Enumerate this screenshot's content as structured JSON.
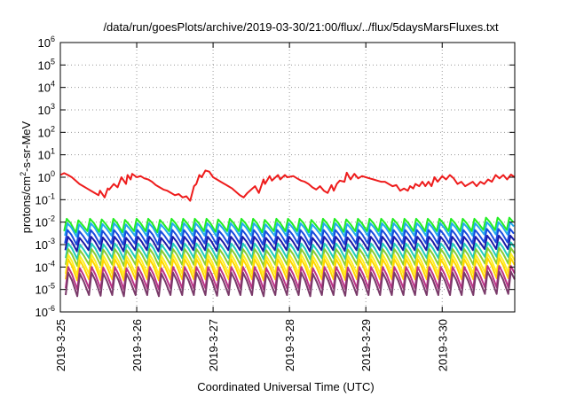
{
  "chart_data": {
    "type": "line",
    "title": "/data/run/goesPlots/archive/2019-03-30/21:00/flux/../flux/5daysMarsFluxes.txt",
    "xlabel": "Coordinated Universal Time (UTC)",
    "ylabel": {
      "pre": "protons/cm",
      "sup": "2",
      "post": "-s-sr-MeV"
    },
    "yscale": "log",
    "ylim": [
      -6,
      6
    ],
    "yticks": [
      -6,
      -5,
      -4,
      -3,
      -2,
      -1,
      0,
      1,
      2,
      3,
      4,
      5,
      6
    ],
    "ytick_base": "10",
    "xlim": [
      0,
      5.95
    ],
    "xticks": [
      {
        "day": 0,
        "label": "2019-3-25"
      },
      {
        "day": 1,
        "label": "2019-3-26"
      },
      {
        "day": 2,
        "label": "2019-3-27"
      },
      {
        "day": 3,
        "label": "2019-3-28"
      },
      {
        "day": 4,
        "label": "2019-3-29"
      },
      {
        "day": 5,
        "label": "2019-3-30"
      }
    ],
    "grid": true,
    "series": [
      {
        "color": "#ee1c1c",
        "width": 2,
        "x": [
          0.0,
          0.05,
          0.1,
          0.15,
          0.2,
          0.25,
          0.3,
          0.35,
          0.4,
          0.45,
          0.5,
          0.52,
          0.58,
          0.62,
          0.64,
          0.7,
          0.75,
          0.8,
          0.86,
          0.88,
          0.92,
          0.94,
          1.0,
          1.05,
          1.1,
          1.15,
          1.2,
          1.25,
          1.3,
          1.35,
          1.4,
          1.45,
          1.5,
          1.55,
          1.6,
          1.65,
          1.7,
          1.75,
          1.78,
          1.82,
          1.85,
          1.9,
          1.95,
          2.0,
          2.05,
          2.1,
          2.15,
          2.2,
          2.25,
          2.3,
          2.35,
          2.4,
          2.45,
          2.5,
          2.55,
          2.6,
          2.66,
          2.68,
          2.74,
          2.77,
          2.85,
          2.88,
          2.94,
          2.97,
          3.05,
          3.1,
          3.15,
          3.2,
          3.25,
          3.3,
          3.35,
          3.4,
          3.45,
          3.5,
          3.55,
          3.58,
          3.62,
          3.66,
          3.72,
          3.75,
          3.8,
          3.85,
          3.9,
          3.95,
          4.0,
          4.05,
          4.1,
          4.15,
          4.2,
          4.25,
          4.3,
          4.35,
          4.4,
          4.45,
          4.5,
          4.55,
          4.58,
          4.62,
          4.65,
          4.7,
          4.74,
          4.78,
          4.82,
          4.86,
          4.9,
          4.94,
          5.0,
          5.05,
          5.1,
          5.15,
          5.2,
          5.25,
          5.3,
          5.35,
          5.4,
          5.45,
          5.5,
          5.55,
          5.6,
          5.65,
          5.7,
          5.75,
          5.8,
          5.85,
          5.9,
          5.95
        ],
        "y": [
          0.1,
          0.18,
          0.1,
          0.0,
          -0.15,
          -0.3,
          -0.4,
          -0.5,
          -0.6,
          -0.7,
          -0.8,
          -0.6,
          -0.9,
          -0.5,
          -0.55,
          -0.3,
          -0.45,
          0.0,
          -0.3,
          0.1,
          -0.1,
          0.15,
          0.0,
          0.05,
          -0.05,
          -0.1,
          -0.2,
          -0.35,
          -0.45,
          -0.55,
          -0.6,
          -0.7,
          -0.8,
          -0.75,
          -0.9,
          -0.85,
          -1.05,
          -0.4,
          -0.3,
          0.1,
          0.0,
          0.3,
          0.25,
          0.0,
          -0.1,
          -0.2,
          -0.3,
          -0.4,
          -0.5,
          -0.65,
          -0.8,
          -0.9,
          -0.7,
          -0.55,
          -0.4,
          -0.7,
          -0.1,
          -0.3,
          0.05,
          -0.15,
          0.1,
          -0.1,
          0.1,
          0.0,
          0.05,
          -0.05,
          -0.15,
          -0.2,
          -0.3,
          -0.45,
          -0.55,
          -0.4,
          -0.6,
          -0.7,
          -0.35,
          -0.6,
          -0.3,
          -0.15,
          -0.2,
          0.2,
          -0.1,
          0.15,
          -0.05,
          0.05,
          0.0,
          -0.05,
          -0.1,
          -0.15,
          -0.2,
          -0.2,
          -0.3,
          -0.4,
          -0.35,
          -0.6,
          -0.5,
          -0.6,
          -0.4,
          -0.5,
          -0.3,
          -0.4,
          -0.2,
          -0.4,
          -0.2,
          -0.4,
          0.0,
          -0.2,
          0.05,
          -0.1,
          0.1,
          -0.05,
          -0.3,
          -0.2,
          -0.4,
          -0.3,
          -0.2,
          -0.4,
          -0.2,
          -0.3,
          -0.1,
          -0.2,
          0.1,
          -0.05,
          0.1,
          -0.1,
          0.12,
          0.0
        ]
      },
      {
        "color": "#22ee22",
        "width": 2,
        "x0": 0.05,
        "period": 0.1525,
        "amp": 0.55,
        "phase": 0.0,
        "base": [
          -1.85,
          -1.92,
          -1.85,
          -1.88,
          -1.85,
          -1.9,
          -1.85,
          -1.85,
          -1.9,
          -1.85,
          -1.85,
          -1.85,
          -1.85,
          -1.88,
          -1.85,
          -1.85,
          -1.85,
          -1.9,
          -1.85,
          -1.85,
          -1.85,
          -1.9,
          -1.85,
          -1.85,
          -1.88,
          -1.85,
          -1.85,
          -1.85,
          -1.85,
          -1.85,
          -1.85,
          -1.85,
          -1.85,
          -1.85,
          -1.85,
          -1.85,
          -1.8,
          -1.8,
          -1.8
        ]
      },
      {
        "color": "#22aaee",
        "width": 2,
        "x0": 0.05,
        "period": 0.1525,
        "amp": 0.55,
        "phase": 0.01,
        "base": [
          -2.05,
          -2.1,
          -2.05,
          -2.08,
          -2.05,
          -2.1,
          -2.05,
          -2.05,
          -2.1,
          -2.05,
          -2.05,
          -2.05,
          -2.05,
          -2.08,
          -2.05,
          -2.05,
          -2.05,
          -2.1,
          -2.05,
          -2.05,
          -2.05,
          -2.1,
          -2.05,
          -2.05,
          -2.08,
          -2.05,
          -2.05,
          -2.05,
          -2.05,
          -2.05,
          -2.05,
          -2.05,
          -2.05,
          -2.05,
          -2.05,
          -2.05,
          -2.0,
          -2.0,
          -2.0
        ]
      },
      {
        "color": "#1a4cdd",
        "width": 2,
        "x0": 0.05,
        "period": 0.1525,
        "amp": 0.6,
        "phase": 0.01,
        "base": [
          -2.35,
          -2.4,
          -2.35,
          -2.38,
          -2.35,
          -2.4,
          -2.35,
          -2.35,
          -2.4,
          -2.35,
          -2.35,
          -2.35,
          -2.35,
          -2.38,
          -2.35,
          -2.35,
          -2.35,
          -2.4,
          -2.35,
          -2.35,
          -2.35,
          -2.4,
          -2.35,
          -2.35,
          -2.38,
          -2.35,
          -2.35,
          -2.35,
          -2.35,
          -2.35,
          -2.35,
          -2.35,
          -2.35,
          -2.35,
          -2.35,
          -2.35,
          -2.3,
          -2.3,
          -2.3
        ]
      },
      {
        "color": "#1a1aaa",
        "width": 2,
        "x0": 0.05,
        "period": 0.1525,
        "amp": 0.6,
        "phase": 0.015,
        "base": [
          -2.65,
          -2.7,
          -2.65,
          -2.68,
          -2.65,
          -2.7,
          -2.65,
          -2.65,
          -2.7,
          -2.65,
          -2.65,
          -2.65,
          -2.65,
          -2.68,
          -2.65,
          -2.65,
          -2.65,
          -2.7,
          -2.65,
          -2.65,
          -2.65,
          -2.7,
          -2.65,
          -2.65,
          -2.68,
          -2.65,
          -2.65,
          -2.65,
          -2.65,
          -2.65,
          -2.65,
          -2.65,
          -2.65,
          -2.65,
          -2.65,
          -2.65,
          -2.6,
          -2.6,
          -2.6
        ]
      },
      {
        "color": "#22ccbb",
        "width": 2,
        "x0": 0.05,
        "period": 0.1525,
        "amp": 0.65,
        "phase": 0.02,
        "base": [
          -2.95,
          -3.0,
          -2.95,
          -2.98,
          -2.95,
          -3.0,
          -2.95,
          -2.95,
          -3.0,
          -2.95,
          -2.95,
          -2.95,
          -2.95,
          -2.98,
          -2.95,
          -2.95,
          -2.95,
          -3.0,
          -2.95,
          -2.95,
          -2.95,
          -3.0,
          -2.95,
          -2.95,
          -2.98,
          -2.95,
          -2.95,
          -2.95,
          -2.95,
          -2.95,
          -2.95,
          -2.95,
          -2.95,
          -2.95,
          -2.95,
          -2.95,
          -2.9,
          -2.9,
          -2.9
        ]
      },
      {
        "color": "#88cc33",
        "width": 2,
        "x0": 0.05,
        "period": 0.1525,
        "amp": 0.7,
        "phase": 0.02,
        "base": [
          -3.2,
          -3.25,
          -3.2,
          -3.22,
          -3.2,
          -3.25,
          -3.2,
          -3.2,
          -3.25,
          -3.2,
          -3.2,
          -3.2,
          -3.2,
          -3.22,
          -3.2,
          -3.2,
          -3.2,
          -3.25,
          -3.2,
          -3.2,
          -3.2,
          -3.25,
          -3.2,
          -3.2,
          -3.22,
          -3.2,
          -3.2,
          -3.2,
          -3.2,
          -3.2,
          -3.2,
          -3.2,
          -3.2,
          -3.2,
          -3.2,
          -3.2,
          -3.15,
          -3.15,
          -3.15
        ]
      },
      {
        "color": "#ffee22",
        "width": 2,
        "x0": 0.05,
        "period": 0.1525,
        "amp": 0.85,
        "phase": 0.02,
        "base": [
          -3.45,
          -3.5,
          -3.45,
          -3.48,
          -3.45,
          -3.5,
          -3.45,
          -3.45,
          -3.5,
          -3.45,
          -3.45,
          -3.45,
          -3.45,
          -3.48,
          -3.45,
          -3.45,
          -3.45,
          -3.5,
          -3.45,
          -3.45,
          -3.45,
          -3.5,
          -3.45,
          -3.45,
          -3.48,
          -3.45,
          -3.45,
          -3.45,
          -3.45,
          -3.45,
          -3.45,
          -3.45,
          -3.45,
          -3.45,
          -3.45,
          -3.45,
          -3.4,
          -3.4,
          -3.4
        ]
      },
      {
        "color": "#ffd700",
        "width": 2,
        "x0": 0.05,
        "period": 0.1525,
        "amp": 0.9,
        "phase": 0.02,
        "base": [
          -3.65,
          -3.7,
          -3.65,
          -3.68,
          -3.65,
          -3.7,
          -3.65,
          -3.65,
          -3.7,
          -3.65,
          -3.65,
          -3.65,
          -3.65,
          -3.68,
          -3.65,
          -3.65,
          -3.65,
          -3.7,
          -3.65,
          -3.65,
          -3.65,
          -3.7,
          -3.65,
          -3.65,
          -3.68,
          -3.65,
          -3.65,
          -3.65,
          -3.65,
          -3.65,
          -3.65,
          -3.65,
          -3.65,
          -3.65,
          -3.65,
          -3.65,
          -3.6,
          -3.6,
          -3.6
        ]
      },
      {
        "color": "#bb3388",
        "width": 2,
        "x0": 0.05,
        "period": 0.1525,
        "amp": 0.95,
        "phase": 0.02,
        "base": [
          -4.0,
          -4.05,
          -4.0,
          -4.02,
          -4.0,
          -4.05,
          -4.0,
          -4.0,
          -4.05,
          -4.0,
          -4.0,
          -4.0,
          -4.0,
          -4.02,
          -4.0,
          -4.0,
          -4.0,
          -4.05,
          -4.0,
          -4.0,
          -4.0,
          -4.05,
          -4.0,
          -4.0,
          -4.02,
          -4.0,
          -4.0,
          -4.0,
          -4.0,
          -4.0,
          -4.0,
          -4.0,
          -4.0,
          -4.0,
          -4.0,
          -4.0,
          -3.95,
          -3.95,
          -3.95
        ]
      },
      {
        "color": "#7a3a6a",
        "width": 2,
        "x0": 0.05,
        "period": 0.1525,
        "amp": 1.0,
        "phase": 0.02,
        "base": [
          -4.25,
          -4.3,
          -4.25,
          -4.28,
          -4.25,
          -4.3,
          -4.25,
          -4.25,
          -4.3,
          -4.25,
          -4.25,
          -4.25,
          -4.25,
          -4.28,
          -4.25,
          -4.25,
          -4.25,
          -4.3,
          -4.25,
          -4.25,
          -4.25,
          -4.3,
          -4.25,
          -4.25,
          -4.28,
          -4.25,
          -4.25,
          -4.25,
          -4.25,
          -4.25,
          -4.25,
          -4.25,
          -4.25,
          -4.25,
          -4.25,
          -4.25,
          -4.2,
          -4.2,
          -4.2
        ]
      }
    ]
  }
}
